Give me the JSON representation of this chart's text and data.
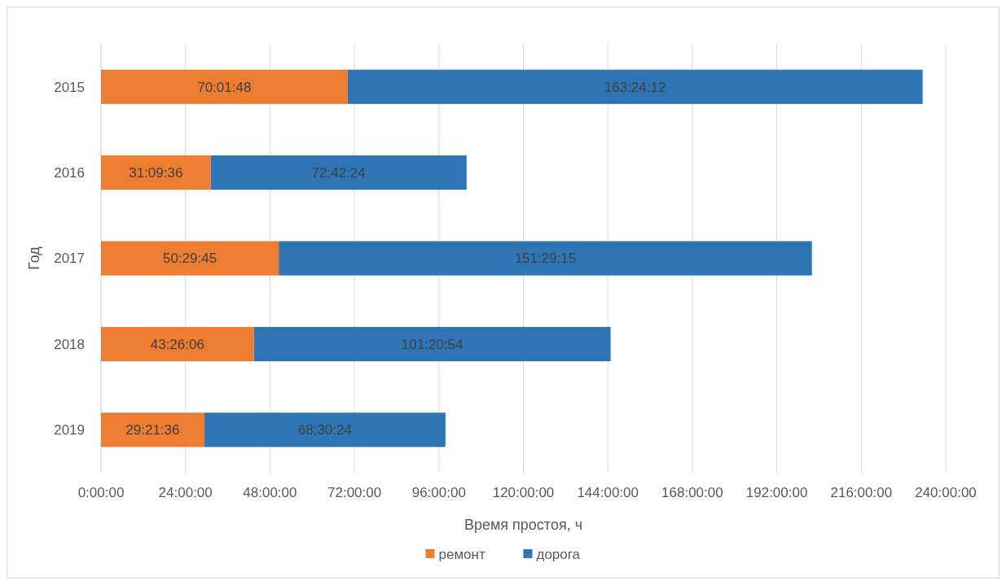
{
  "chart_data": {
    "type": "bar",
    "orientation": "horizontal",
    "stacked": true,
    "xlabel": "Время простоя, ч",
    "ylabel": "Год",
    "categories": [
      "2015",
      "2016",
      "2017",
      "2018",
      "2019"
    ],
    "series": [
      {
        "name": "ремонт",
        "color": "#ed7d31",
        "values": [
          70.03,
          31.16,
          50.4958,
          43.435,
          29.36
        ],
        "value_labels": [
          "70:01:48",
          "31:09:36",
          "50:29:45",
          "43:26:06",
          "29:21:36"
        ]
      },
      {
        "name": "дорога",
        "color": "#2e75b6",
        "values": [
          163.4033,
          72.7067,
          151.4875,
          101.3483,
          68.5067
        ],
        "value_labels": [
          "163:24:12",
          "72:42:24",
          "151:29:15",
          "101:20:54",
          "68:30:24"
        ]
      }
    ],
    "xlim": [
      0,
      240
    ],
    "xticks": [
      {
        "value": 0,
        "label": "0:00:00"
      },
      {
        "value": 24,
        "label": "24:00:00"
      },
      {
        "value": 48,
        "label": "48:00:00"
      },
      {
        "value": 72,
        "label": "72:00:00"
      },
      {
        "value": 96,
        "label": "96:00:00"
      },
      {
        "value": 120,
        "label": "120:00:00"
      },
      {
        "value": 144,
        "label": "144:00:00"
      },
      {
        "value": 168,
        "label": "168:00:00"
      },
      {
        "value": 192,
        "label": "192:00:00"
      },
      {
        "value": 216,
        "label": "216:00:00"
      },
      {
        "value": 240,
        "label": "240:00:00"
      }
    ],
    "grid": "x",
    "legend": "bottom"
  }
}
